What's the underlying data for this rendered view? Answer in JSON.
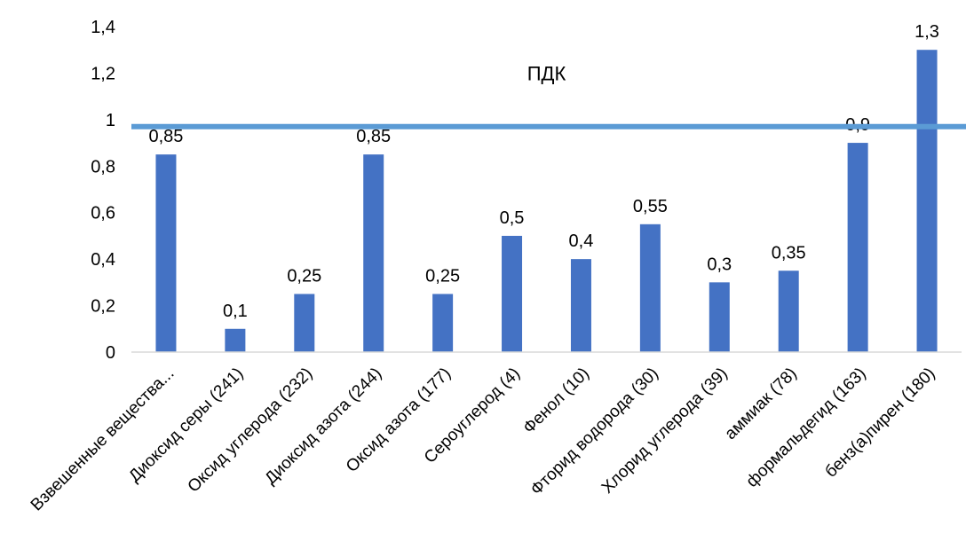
{
  "chart_data": {
    "type": "bar",
    "categories": [
      "Взвешенные вещества...",
      "Диоксид серы (241)",
      "Оксид углерода (232)",
      "Диоксид азота (244)",
      "Оксид азота (177)",
      "Сероуглерод (4)",
      "Фенол (10)",
      "Фторид водорода (30)",
      "Хлорид углерода (39)",
      "аммиак (78)",
      "формальдегид (163)",
      "бенз(а)пирен (180)"
    ],
    "values": [
      0.85,
      0.1,
      0.25,
      0.85,
      0.25,
      0.5,
      0.4,
      0.55,
      0.3,
      0.35,
      0.9,
      1.3
    ],
    "data_labels": [
      "0,85",
      "0,1",
      "0,25",
      "0,85",
      "0,25",
      "0,5",
      "0,4",
      "0,55",
      "0,3",
      "0,35",
      "0,9",
      "1,3"
    ],
    "ylim": [
      0,
      1.4
    ],
    "y_ticks": [
      0,
      0.2,
      0.4,
      0.6,
      0.8,
      1,
      1.2,
      1.4
    ],
    "y_tick_labels": [
      "0",
      "0,2",
      "0,4",
      "0,6",
      "0,8",
      "1",
      "1,2",
      "1,4"
    ],
    "grid": false,
    "reference_line": {
      "label": "ПДК",
      "value": 0.97,
      "color": "#5b9bd5"
    },
    "bar_color": "#4472c4",
    "axis_color": "#d9d9d9",
    "title": "",
    "xlabel": "",
    "ylabel": ""
  }
}
